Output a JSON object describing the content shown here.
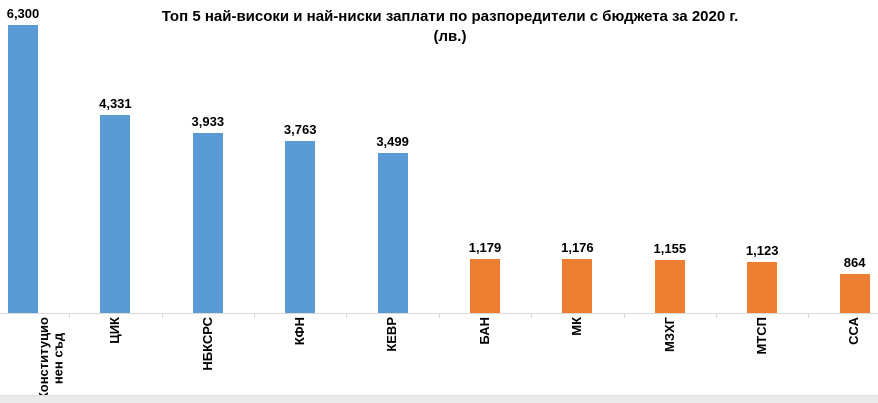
{
  "chart_data": {
    "type": "bar",
    "title": "Топ 5 най-високи и най-ниски заплати по разпоредители с бюджета за 2020 г.",
    "subtitle": "(лв.)",
    "categories": [
      "Конституцио\nнен съд",
      "ЦИК",
      "НБКСРС",
      "КФН",
      "КЕВР",
      "БАН",
      "МК",
      "МЗХГ",
      "МТСП",
      "ССА"
    ],
    "values": [
      6300,
      4331,
      3933,
      3763,
      3499,
      1179,
      1176,
      1155,
      1123,
      864
    ],
    "value_labels": [
      "6,300",
      "4,331",
      "3,933",
      "3,763",
      "3,499",
      "1,179",
      "1,176",
      "1,155",
      "1,123",
      "864"
    ],
    "bar_colors": [
      "#5B9BD5",
      "#5B9BD5",
      "#5B9BD5",
      "#5B9BD5",
      "#5B9BD5",
      "#ED7D31",
      "#ED7D31",
      "#ED7D31",
      "#ED7D31",
      "#ED7D31"
    ],
    "xlabel": "",
    "ylabel": "",
    "ylim": [
      0,
      6300
    ],
    "grid": false,
    "legend": false,
    "data_labels": true,
    "category_labels_rotated": true
  },
  "colors": {
    "high_series": "#5B9BD5",
    "low_series": "#ED7D31",
    "axis": "#D9D9D9",
    "text": "#000000",
    "background": "#FFFFFF",
    "bottom_strip": "#EBEBEB"
  }
}
